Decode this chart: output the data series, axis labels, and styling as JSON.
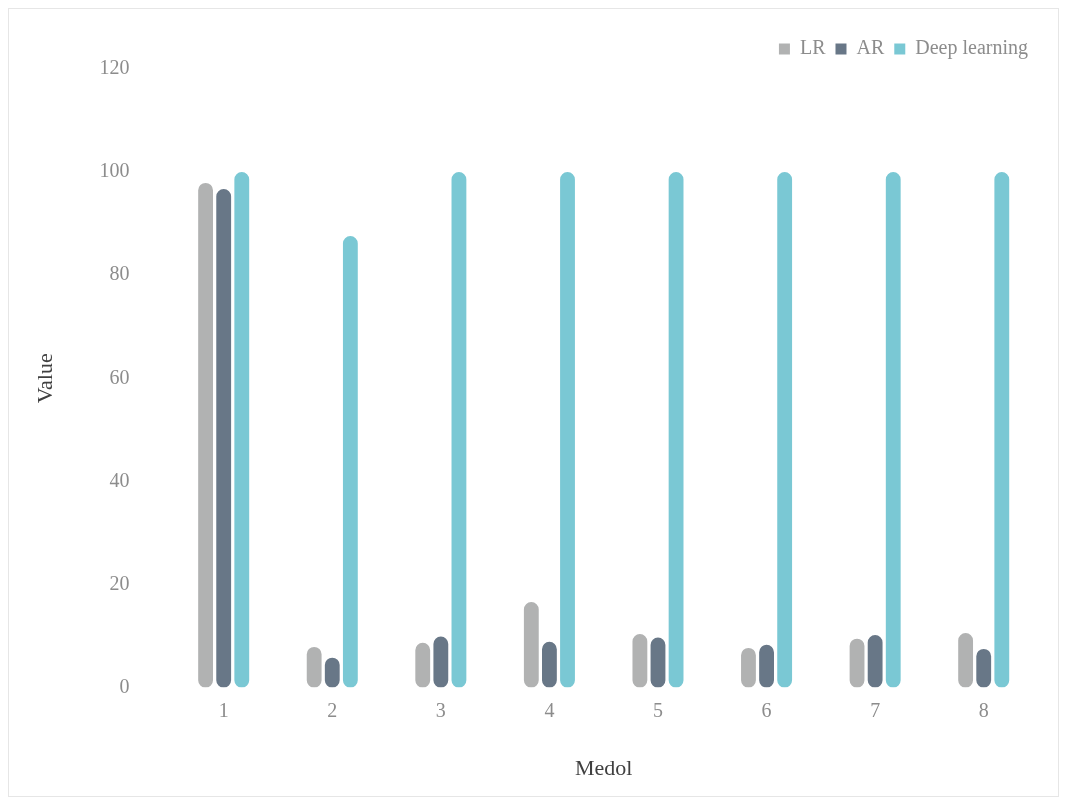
{
  "chart_data": {
    "type": "bar",
    "xlabel": "Medol",
    "ylabel": "Value",
    "categories": [
      "1",
      "2",
      "3",
      "4",
      "5",
      "6",
      "7",
      "8"
    ],
    "series": [
      {
        "name": "LR",
        "color": "#b1b2b2",
        "values": [
          97.9,
          7.9,
          8.7,
          16.6,
          10.4,
          7.7,
          9.5,
          10.6
        ]
      },
      {
        "name": "AR",
        "color": "#687787",
        "values": [
          96.7,
          5.8,
          9.9,
          8.9,
          9.7,
          8.3,
          10.2,
          7.5
        ]
      },
      {
        "name": "Deep learning",
        "color": "#7ac8d4",
        "values": [
          100,
          87.6,
          100,
          100,
          100,
          100,
          100,
          100
        ]
      }
    ],
    "ylim": [
      0,
      120
    ],
    "yticks": [
      0,
      20,
      40,
      60,
      80,
      100,
      120
    ],
    "grid": false,
    "legend": "top right"
  }
}
